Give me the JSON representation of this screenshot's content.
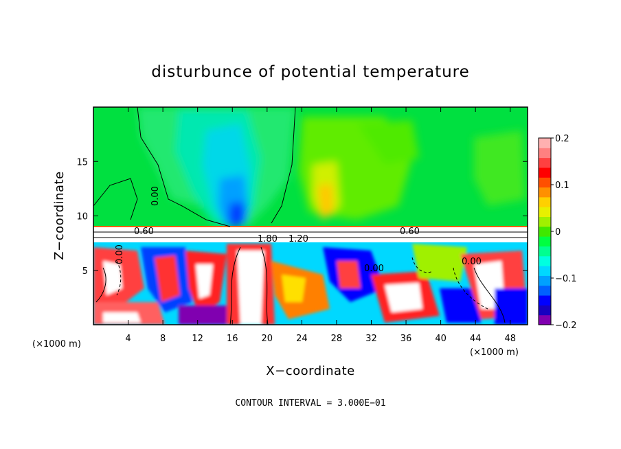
{
  "chart_data": {
    "type": "heatmap",
    "title": "disturbunce of potential temperature",
    "xlabel": "X−coordinate",
    "ylabel": "Z−coordinate",
    "x_unit": "(×1000 m)",
    "x_unit_right": "(×1000 m)",
    "xlim": [
      0,
      50
    ],
    "ylim": [
      0,
      20
    ],
    "x_ticks": [
      4,
      8,
      12,
      16,
      20,
      24,
      28,
      32,
      36,
      40,
      44,
      48
    ],
    "x_tick_labels": [
      "4",
      "8",
      "12",
      "16",
      "20",
      "24",
      "28",
      "32",
      "36",
      "40",
      "44",
      "48"
    ],
    "y_ticks": [
      5,
      10,
      15
    ],
    "y_tick_labels": [
      "5",
      "10",
      "15"
    ],
    "colorbar": {
      "range": [
        -0.2,
        0.2
      ],
      "ticks": [
        -0.2,
        -0.1,
        0,
        0.1,
        0.2
      ],
      "tick_labels": [
        "−0.2",
        "−0.1",
        "0",
        "0.1",
        "0.2"
      ],
      "colors": [
        "#8000b0",
        "#1800c0",
        "#0000ff",
        "#0060ff",
        "#00a0ff",
        "#00d8ff",
        "#00ffe0",
        "#00ff90",
        "#00ff40",
        "#40e800",
        "#a0f000",
        "#e8f000",
        "#ffd000",
        "#ff9000",
        "#ff5000",
        "#ff0000",
        "#ff4040",
        "#ff8080",
        "#ffb0b0"
      ]
    },
    "contour_labels": [
      "0.60",
      "0.60",
      "0.00",
      "0.00",
      "0.00",
      "0.00",
      "1.80",
      "1.20"
    ],
    "note": "CONTOUR INTERVAL = 3.000E−01"
  }
}
